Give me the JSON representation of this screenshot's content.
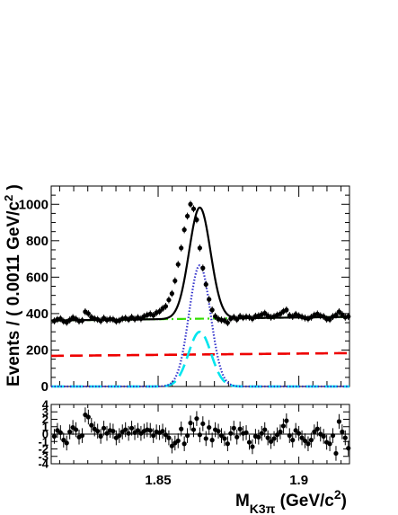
{
  "chart_data": [
    {
      "type": "line",
      "role": "fit",
      "ylabel_text": "Events / ( 0.0011 GeV/c",
      "ylabel_sup": "2",
      "ylabel_close": " )",
      "xlim": [
        1.812,
        1.918
      ],
      "ylim": [
        0,
        1100
      ],
      "y_ticks": [
        "0",
        "200",
        "400",
        "600",
        "800",
        "1000"
      ],
      "y_tick_values": [
        0,
        200,
        400,
        600,
        800,
        1000
      ],
      "x_ticks": [
        1.85,
        1.9
      ],
      "grid": false,
      "curves": {
        "total": {
          "color": "#000000",
          "style": "solid",
          "mean": 1.8648,
          "sigma": 0.0038,
          "amplitude": 610,
          "bkg_a": 362,
          "bkg_b": 188
        },
        "signal_peak": {
          "color": "#3333cc",
          "style": "dotted",
          "mean": 1.8648,
          "sigma": 0.0038,
          "amplitude": 665
        },
        "background_sum": {
          "color": "#33dd00",
          "style": "dash-dot",
          "bkg_a": 362,
          "bkg_b": 188
        },
        "background_component": {
          "color": "#ee0000",
          "style": "dashed",
          "bkg_a": 168,
          "bkg_b": 143
        },
        "narrow_component": {
          "color": "#00e5ee",
          "style": "dashed",
          "mean": 1.8648,
          "sigma": 0.004,
          "amplitude": 300
        }
      },
      "points": {
        "x": [
          1.8131,
          1.8142,
          1.8153,
          1.8164,
          1.8175,
          1.8186,
          1.8197,
          1.8208,
          1.8219,
          1.823,
          1.8241,
          1.8252,
          1.8263,
          1.8274,
          1.8285,
          1.8296,
          1.8307,
          1.8318,
          1.8329,
          1.834,
          1.8351,
          1.8362,
          1.8373,
          1.8384,
          1.8395,
          1.8406,
          1.8417,
          1.8428,
          1.8439,
          1.845,
          1.8461,
          1.8472,
          1.8483,
          1.8494,
          1.8505,
          1.8516,
          1.8527,
          1.8538,
          1.8549,
          1.856,
          1.8571,
          1.8582,
          1.8593,
          1.8604,
          1.8615,
          1.8626,
          1.8637,
          1.8648,
          1.8659,
          1.867,
          1.8681,
          1.8692,
          1.8703,
          1.8714,
          1.8725,
          1.8736,
          1.8747,
          1.8758,
          1.8769,
          1.878,
          1.8791,
          1.8802,
          1.8813,
          1.8824,
          1.8835,
          1.8846,
          1.8857,
          1.8868,
          1.8879,
          1.889,
          1.8901,
          1.8912,
          1.8923,
          1.8934,
          1.8945,
          1.8956,
          1.8967,
          1.8978,
          1.8989,
          1.9,
          1.9011,
          1.9022,
          1.9033,
          1.9044,
          1.9055,
          1.9066,
          1.9077,
          1.9088,
          1.9099,
          1.911,
          1.9121,
          1.9132,
          1.9143,
          1.9154,
          1.9165,
          1.9176
        ],
        "y": [
          360,
          368,
          372,
          358,
          352,
          365,
          378,
          370,
          359,
          362,
          410,
          400,
          380,
          372,
          368,
          360,
          375,
          365,
          370,
          368,
          358,
          362,
          372,
          375,
          368,
          380,
          370,
          378,
          372,
          385,
          392,
          398,
          390,
          405,
          412,
          428,
          440,
          475,
          510,
          580,
          670,
          760,
          860,
          935,
          1000,
          975,
          915,
          760,
          650,
          560,
          478,
          420,
          385,
          370,
          365,
          362,
          350,
          372,
          380,
          368,
          385,
          378,
          382,
          380,
          372,
          386,
          388,
          395,
          402,
          388,
          380,
          384,
          392,
          398,
          412,
          420,
          390,
          384,
          396,
          388,
          382,
          376,
          372,
          380,
          392,
          398,
          388,
          384,
          370,
          368,
          384,
          392,
          410,
          395,
          380,
          384
        ],
        "err": 19
      }
    },
    {
      "type": "scatter",
      "role": "residual",
      "xlim": [
        1.812,
        1.918
      ],
      "ylim": [
        -4,
        4
      ],
      "y_ticks": [
        "4",
        "3",
        "2",
        "1",
        "0",
        "-1",
        "-2",
        "-3",
        "-4"
      ],
      "y_tick_values": [
        4,
        3,
        2,
        1,
        0,
        -1,
        -2,
        -3,
        -4
      ],
      "x_ticks": [
        "1.85",
        "1.9"
      ],
      "x_tick_values": [
        1.85,
        1.9
      ],
      "xlabel_main": "M",
      "xlabel_sub": "K3π",
      "xlabel_rest": " (GeV/c",
      "xlabel_sup": "2",
      "xlabel_close": ")",
      "points": {
        "y": [
          -0.3,
          0.5,
          0.2,
          -0.8,
          -1.2,
          0.3,
          0.9,
          0.6,
          -0.4,
          -0.2,
          2.6,
          2.3,
          1.2,
          0.7,
          0.4,
          -0.3,
          0.8,
          0.1,
          0.5,
          0.4,
          -0.5,
          -0.2,
          0.3,
          0.6,
          0.1,
          0.8,
          0.2,
          0.5,
          0.1,
          0.4,
          0.6,
          0.5,
          -0.2,
          0.3,
          0.2,
          0.4,
          -0.1,
          -0.5,
          -1.6,
          -1.2,
          -0.9,
          0.7,
          -1.3,
          -0.2,
          1.5,
          0.6,
          2.1,
          -0.1,
          1.4,
          -0.6,
          0.9,
          -0.8,
          0.6,
          0.4,
          -0.2,
          -0.6,
          -1.3,
          0.1,
          0.8,
          -0.4,
          0.7,
          0.1,
          0.2,
          -1.1,
          -1.7,
          -0.3,
          -0.4,
          0.1,
          0.6,
          -0.5,
          -1.0,
          -0.6,
          -0.1,
          0.3,
          1.1,
          1.8,
          -0.2,
          -0.8,
          0.5,
          0.1,
          -0.5,
          -0.9,
          -1.3,
          -0.8,
          0.3,
          0.7,
          0.0,
          -0.3,
          -1.1,
          -1.3,
          -0.2,
          -2.6,
          1.7,
          0.3,
          -0.5,
          -1.9
        ]
      }
    }
  ]
}
